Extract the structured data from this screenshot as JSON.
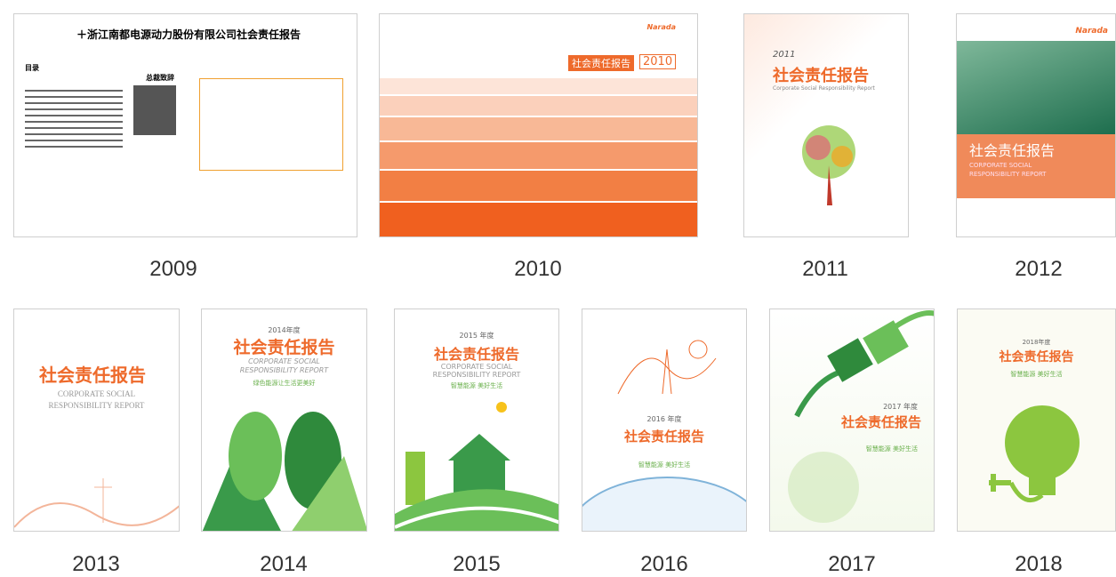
{
  "covers": [
    {
      "year": "2009",
      "texts": [
        "＋浙江南都电源动力股份有限公司社会责任报告",
        "目录",
        "总裁致辞"
      ]
    },
    {
      "year": "2010",
      "texts": [
        "Narada",
        "社会责任报告",
        "2010"
      ]
    },
    {
      "year": "2011",
      "texts": [
        "2011",
        "社会责任报告",
        "Corporate Social Responsibility Report"
      ]
    },
    {
      "year": "2012",
      "texts": [
        "Narada",
        "社会责任报告",
        "CORPORATE SOCIAL",
        "RESPONSIBILITY REPORT"
      ]
    },
    {
      "year": "2013",
      "texts": [
        "社会责任报告",
        "CORPORATE SOCIAL",
        "RESPONSIBILITY REPORT"
      ]
    },
    {
      "year": "2014",
      "texts": [
        "2014年度",
        "社会责任报告",
        "CORPORATE SOCIAL",
        "RESPONSIBILITY REPORT",
        "绿色能源让生活更美好"
      ]
    },
    {
      "year": "2015",
      "texts": [
        "2015 年度",
        "社会责任报告",
        "CORPORATE SOCIAL",
        "RESPONSIBILITY REPORT",
        "智慧能源 美好生活"
      ]
    },
    {
      "year": "2016",
      "texts": [
        "2016 年度",
        "社会责任报告",
        "智慧能源 美好生活"
      ]
    },
    {
      "year": "2017",
      "texts": [
        "2017 年度",
        "社会责任报告",
        "智慧能源 美好生活"
      ]
    },
    {
      "year": "2018",
      "texts": [
        "2018年度",
        "社会责任报告",
        "智慧能源 美好生活"
      ]
    }
  ]
}
